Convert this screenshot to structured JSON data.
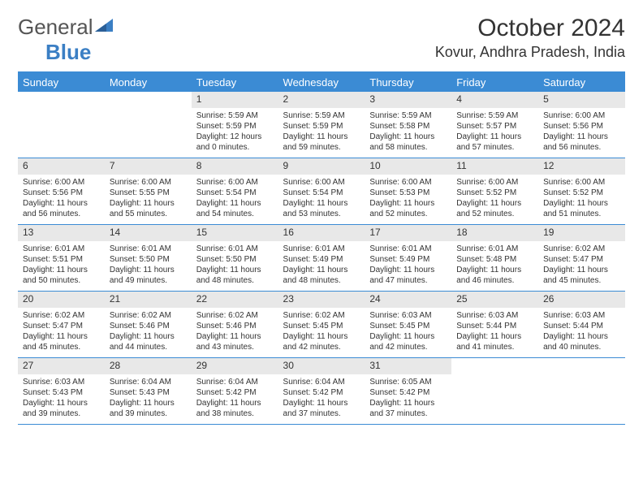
{
  "logo": {
    "text1": "General",
    "text2": "Blue"
  },
  "title": "October 2024",
  "location": "Kovur, Andhra Pradesh, India",
  "colors": {
    "header_bg": "#3b8bd4",
    "header_fg": "#ffffff",
    "daynum_bg": "#e8e8e8",
    "rule": "#3b8bd4",
    "text": "#333333"
  },
  "day_headers": [
    "Sunday",
    "Monday",
    "Tuesday",
    "Wednesday",
    "Thursday",
    "Friday",
    "Saturday"
  ],
  "weeks": [
    [
      null,
      null,
      {
        "n": "1",
        "sr": "Sunrise: 5:59 AM",
        "ss": "Sunset: 5:59 PM",
        "dl": "Daylight: 12 hours and 0 minutes."
      },
      {
        "n": "2",
        "sr": "Sunrise: 5:59 AM",
        "ss": "Sunset: 5:59 PM",
        "dl": "Daylight: 11 hours and 59 minutes."
      },
      {
        "n": "3",
        "sr": "Sunrise: 5:59 AM",
        "ss": "Sunset: 5:58 PM",
        "dl": "Daylight: 11 hours and 58 minutes."
      },
      {
        "n": "4",
        "sr": "Sunrise: 5:59 AM",
        "ss": "Sunset: 5:57 PM",
        "dl": "Daylight: 11 hours and 57 minutes."
      },
      {
        "n": "5",
        "sr": "Sunrise: 6:00 AM",
        "ss": "Sunset: 5:56 PM",
        "dl": "Daylight: 11 hours and 56 minutes."
      }
    ],
    [
      {
        "n": "6",
        "sr": "Sunrise: 6:00 AM",
        "ss": "Sunset: 5:56 PM",
        "dl": "Daylight: 11 hours and 56 minutes."
      },
      {
        "n": "7",
        "sr": "Sunrise: 6:00 AM",
        "ss": "Sunset: 5:55 PM",
        "dl": "Daylight: 11 hours and 55 minutes."
      },
      {
        "n": "8",
        "sr": "Sunrise: 6:00 AM",
        "ss": "Sunset: 5:54 PM",
        "dl": "Daylight: 11 hours and 54 minutes."
      },
      {
        "n": "9",
        "sr": "Sunrise: 6:00 AM",
        "ss": "Sunset: 5:54 PM",
        "dl": "Daylight: 11 hours and 53 minutes."
      },
      {
        "n": "10",
        "sr": "Sunrise: 6:00 AM",
        "ss": "Sunset: 5:53 PM",
        "dl": "Daylight: 11 hours and 52 minutes."
      },
      {
        "n": "11",
        "sr": "Sunrise: 6:00 AM",
        "ss": "Sunset: 5:52 PM",
        "dl": "Daylight: 11 hours and 52 minutes."
      },
      {
        "n": "12",
        "sr": "Sunrise: 6:00 AM",
        "ss": "Sunset: 5:52 PM",
        "dl": "Daylight: 11 hours and 51 minutes."
      }
    ],
    [
      {
        "n": "13",
        "sr": "Sunrise: 6:01 AM",
        "ss": "Sunset: 5:51 PM",
        "dl": "Daylight: 11 hours and 50 minutes."
      },
      {
        "n": "14",
        "sr": "Sunrise: 6:01 AM",
        "ss": "Sunset: 5:50 PM",
        "dl": "Daylight: 11 hours and 49 minutes."
      },
      {
        "n": "15",
        "sr": "Sunrise: 6:01 AM",
        "ss": "Sunset: 5:50 PM",
        "dl": "Daylight: 11 hours and 48 minutes."
      },
      {
        "n": "16",
        "sr": "Sunrise: 6:01 AM",
        "ss": "Sunset: 5:49 PM",
        "dl": "Daylight: 11 hours and 48 minutes."
      },
      {
        "n": "17",
        "sr": "Sunrise: 6:01 AM",
        "ss": "Sunset: 5:49 PM",
        "dl": "Daylight: 11 hours and 47 minutes."
      },
      {
        "n": "18",
        "sr": "Sunrise: 6:01 AM",
        "ss": "Sunset: 5:48 PM",
        "dl": "Daylight: 11 hours and 46 minutes."
      },
      {
        "n": "19",
        "sr": "Sunrise: 6:02 AM",
        "ss": "Sunset: 5:47 PM",
        "dl": "Daylight: 11 hours and 45 minutes."
      }
    ],
    [
      {
        "n": "20",
        "sr": "Sunrise: 6:02 AM",
        "ss": "Sunset: 5:47 PM",
        "dl": "Daylight: 11 hours and 45 minutes."
      },
      {
        "n": "21",
        "sr": "Sunrise: 6:02 AM",
        "ss": "Sunset: 5:46 PM",
        "dl": "Daylight: 11 hours and 44 minutes."
      },
      {
        "n": "22",
        "sr": "Sunrise: 6:02 AM",
        "ss": "Sunset: 5:46 PM",
        "dl": "Daylight: 11 hours and 43 minutes."
      },
      {
        "n": "23",
        "sr": "Sunrise: 6:02 AM",
        "ss": "Sunset: 5:45 PM",
        "dl": "Daylight: 11 hours and 42 minutes."
      },
      {
        "n": "24",
        "sr": "Sunrise: 6:03 AM",
        "ss": "Sunset: 5:45 PM",
        "dl": "Daylight: 11 hours and 42 minutes."
      },
      {
        "n": "25",
        "sr": "Sunrise: 6:03 AM",
        "ss": "Sunset: 5:44 PM",
        "dl": "Daylight: 11 hours and 41 minutes."
      },
      {
        "n": "26",
        "sr": "Sunrise: 6:03 AM",
        "ss": "Sunset: 5:44 PM",
        "dl": "Daylight: 11 hours and 40 minutes."
      }
    ],
    [
      {
        "n": "27",
        "sr": "Sunrise: 6:03 AM",
        "ss": "Sunset: 5:43 PM",
        "dl": "Daylight: 11 hours and 39 minutes."
      },
      {
        "n": "28",
        "sr": "Sunrise: 6:04 AM",
        "ss": "Sunset: 5:43 PM",
        "dl": "Daylight: 11 hours and 39 minutes."
      },
      {
        "n": "29",
        "sr": "Sunrise: 6:04 AM",
        "ss": "Sunset: 5:42 PM",
        "dl": "Daylight: 11 hours and 38 minutes."
      },
      {
        "n": "30",
        "sr": "Sunrise: 6:04 AM",
        "ss": "Sunset: 5:42 PM",
        "dl": "Daylight: 11 hours and 37 minutes."
      },
      {
        "n": "31",
        "sr": "Sunrise: 6:05 AM",
        "ss": "Sunset: 5:42 PM",
        "dl": "Daylight: 11 hours and 37 minutes."
      },
      null,
      null
    ]
  ]
}
